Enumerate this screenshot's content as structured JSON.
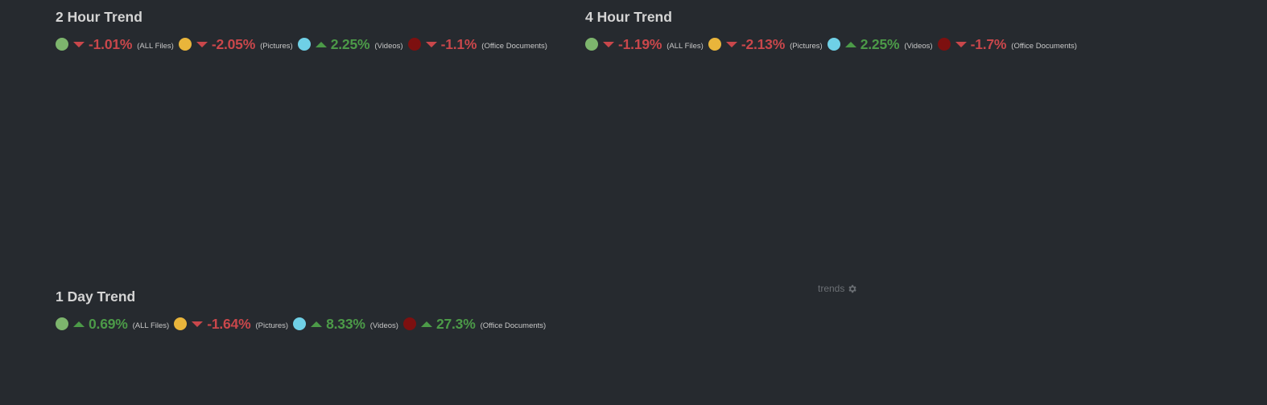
{
  "colors": {
    "all_files": "#7db56d",
    "pictures": "#e9b53b",
    "videos": "#6fd0e6",
    "office_documents": "#7d1010",
    "down": "#c9474b",
    "up": "#4c9a48"
  },
  "panels": [
    {
      "title": "2 Hour Trend",
      "metrics": [
        {
          "icon": "green-dot",
          "direction": "down",
          "value": "-1.01%",
          "label": "(ALL Files)"
        },
        {
          "icon": "yellow-dot",
          "direction": "down",
          "value": "-2.05%",
          "label": "(Pictures)"
        },
        {
          "icon": "cyan-dot",
          "direction": "up",
          "value": "2.25%",
          "label": "(Videos)"
        },
        {
          "icon": "red-dot",
          "direction": "down",
          "value": "-1.1%",
          "label": "(Office Documents)"
        }
      ]
    },
    {
      "title": "4 Hour Trend",
      "metrics": [
        {
          "icon": "green-dot",
          "direction": "down",
          "value": "-1.19%",
          "label": "(ALL Files)"
        },
        {
          "icon": "yellow-dot",
          "direction": "down",
          "value": "-2.13%",
          "label": "(Pictures)"
        },
        {
          "icon": "cyan-dot",
          "direction": "up",
          "value": "2.25%",
          "label": "(Videos)"
        },
        {
          "icon": "red-dot",
          "direction": "down",
          "value": "-1.7%",
          "label": "(Office Documents)"
        }
      ]
    },
    {
      "title": "1 Day Trend",
      "metrics": [
        {
          "icon": "green-dot",
          "direction": "up",
          "value": "0.69%",
          "label": "(ALL Files)"
        },
        {
          "icon": "yellow-dot",
          "direction": "down",
          "value": "-1.64%",
          "label": "(Pictures)"
        },
        {
          "icon": "cyan-dot",
          "direction": "up",
          "value": "8.33%",
          "label": "(Videos)"
        },
        {
          "icon": "red-dot",
          "direction": "up",
          "value": "27.3%",
          "label": "(Office Documents)"
        }
      ]
    }
  ],
  "trends_link": {
    "label": "trends",
    "icon": "gear-icon"
  }
}
